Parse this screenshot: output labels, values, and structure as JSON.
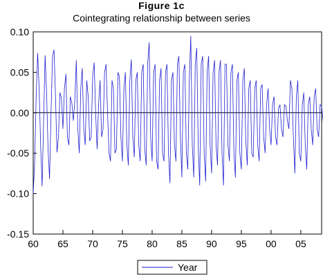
{
  "chart_data": {
    "type": "line",
    "title": "Figure 1c",
    "subtitle": "Cointegrating relationship between series",
    "xlabel": "",
    "ylabel": "",
    "xlim": [
      1960,
      2008.5
    ],
    "ylim": [
      -0.15,
      0.1
    ],
    "x_ticks": [
      {
        "value": 1960,
        "label": "60"
      },
      {
        "value": 1965,
        "label": "65"
      },
      {
        "value": 1970,
        "label": "70"
      },
      {
        "value": 1975,
        "label": "75"
      },
      {
        "value": 1980,
        "label": "80"
      },
      {
        "value": 1985,
        "label": "85"
      },
      {
        "value": 1990,
        "label": "90"
      },
      {
        "value": 1995,
        "label": "95"
      },
      {
        "value": 2000,
        "label": "00"
      },
      {
        "value": 2005,
        "label": "05"
      }
    ],
    "y_ticks": [
      {
        "value": 0.1,
        "label": "0.10"
      },
      {
        "value": 0.05,
        "label": "0.05"
      },
      {
        "value": 0.0,
        "label": "0.00"
      },
      {
        "value": -0.05,
        "label": "-0.05"
      },
      {
        "value": -0.1,
        "label": "-0.10"
      },
      {
        "value": -0.15,
        "label": "-0.15"
      }
    ],
    "zero_line": true,
    "grid": false,
    "legend_position": "bottom-center",
    "series_color": "#1f1fd0",
    "series": [
      {
        "name": "Year",
        "x_start": 1960,
        "x_step": 0.25,
        "values": [
          -0.1,
          -0.06,
          0.02,
          0.074,
          0.03,
          -0.04,
          -0.091,
          -0.01,
          0.071,
          0.025,
          -0.045,
          -0.082,
          0.0,
          0.07,
          0.078,
          0.02,
          -0.049,
          -0.03,
          0.025,
          0.018,
          -0.02,
          0.03,
          0.048,
          -0.03,
          -0.04,
          0.02,
          0.012,
          -0.01,
          0.015,
          0.065,
          -0.02,
          -0.05,
          0.03,
          0.055,
          -0.02,
          -0.04,
          0.04,
          0.02,
          -0.035,
          -0.03,
          0.045,
          0.062,
          0.0,
          -0.045,
          0.01,
          0.04,
          -0.03,
          -0.02,
          0.05,
          0.06,
          0.0,
          -0.05,
          -0.06,
          0.04,
          0.03,
          -0.05,
          -0.045,
          0.05,
          0.045,
          -0.03,
          -0.06,
          0.03,
          0.05,
          -0.04,
          -0.065,
          0.04,
          0.066,
          -0.03,
          -0.055,
          0.04,
          0.05,
          -0.04,
          -0.06,
          0.05,
          0.06,
          -0.045,
          -0.065,
          0.06,
          0.087,
          -0.03,
          -0.06,
          0.05,
          0.06,
          -0.06,
          -0.07,
          0.04,
          0.055,
          -0.05,
          -0.06,
          0.05,
          0.06,
          -0.05,
          -0.087,
          0.04,
          0.05,
          -0.04,
          -0.06,
          0.06,
          0.07,
          -0.03,
          -0.08,
          0.05,
          0.06,
          -0.05,
          -0.07,
          0.04,
          0.095,
          -0.04,
          -0.08,
          0.06,
          0.08,
          -0.04,
          -0.09,
          0.06,
          0.07,
          -0.05,
          -0.085,
          0.05,
          0.07,
          -0.04,
          -0.075,
          0.05,
          0.065,
          -0.04,
          -0.065,
          0.05,
          0.065,
          -0.05,
          -0.09,
          0.06,
          0.06,
          -0.04,
          -0.06,
          0.05,
          0.06,
          -0.05,
          -0.08,
          0.04,
          0.05,
          -0.05,
          -0.07,
          0.04,
          0.055,
          -0.035,
          -0.065,
          0.03,
          0.04,
          -0.05,
          -0.055,
          0.03,
          0.04,
          -0.04,
          -0.06,
          0.03,
          0.035,
          -0.03,
          -0.05,
          0.01,
          0.03,
          -0.02,
          -0.04,
          0.01,
          0.02,
          -0.03,
          -0.04,
          0.005,
          0.01,
          -0.02,
          -0.03,
          0.01,
          0.008,
          -0.01,
          -0.02,
          0.04,
          0.03,
          -0.03,
          -0.075,
          0.02,
          0.04,
          -0.05,
          -0.06,
          0.01,
          0.025,
          -0.04,
          -0.07,
          0.01,
          0.02,
          -0.02,
          -0.04,
          0.02,
          0.03,
          -0.02,
          -0.03,
          0.01,
          0.008,
          -0.01,
          -0.03,
          0.005,
          0.0,
          -0.035,
          -0.02,
          0.01,
          0.01,
          -0.03,
          -0.01,
          0.02,
          0.015,
          -0.02,
          -0.01,
          0.01,
          0.008,
          -0.02,
          -0.01,
          0.01,
          0.015
        ]
      }
    ]
  }
}
